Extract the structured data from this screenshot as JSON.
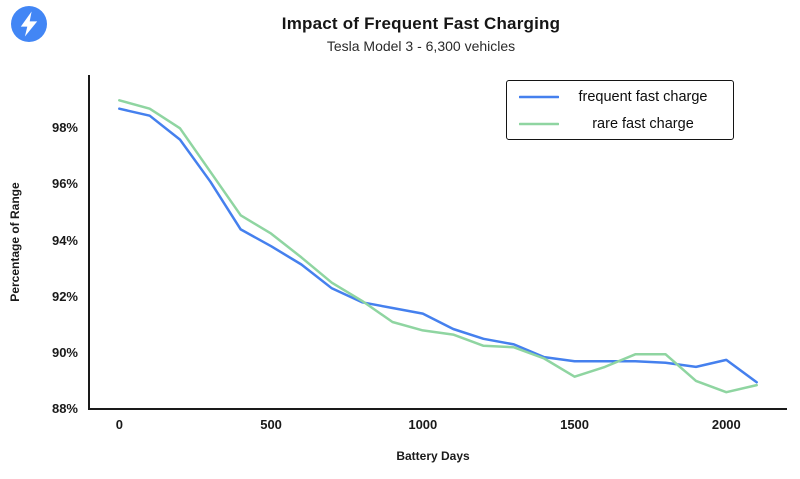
{
  "logo": {
    "icon": "lightning-bolt-icon",
    "bg_color": "#4286f5",
    "bolt_color": "#ffffff"
  },
  "chart_data": {
    "type": "line",
    "title": "Impact of Frequent Fast Charging",
    "subtitle": "Tesla Model 3 - 6,300 vehicles",
    "xlabel": "Battery Days",
    "ylabel": "Percentage of Range",
    "xlim": [
      -100,
      2200
    ],
    "ylim": [
      88,
      99.9
    ],
    "grid": false,
    "legend_position": "top-right",
    "x_ticks": [
      0,
      500,
      1000,
      1500,
      2000
    ],
    "x_tick_labels": [
      "0",
      "500",
      "1000",
      "1500",
      "2000"
    ],
    "y_ticks": [
      98,
      96,
      94,
      92,
      90,
      88
    ],
    "y_tick_labels": [
      "98%",
      "96%",
      "94%",
      "92%",
      "90%",
      "88%"
    ],
    "x": [
      0,
      100,
      200,
      300,
      400,
      500,
      600,
      700,
      800,
      900,
      1000,
      1100,
      1200,
      1300,
      1400,
      1500,
      1600,
      1700,
      1800,
      1900,
      2000,
      2100
    ],
    "series": [
      {
        "name": "frequent fast charge",
        "color": "#4580ee",
        "values": [
          98.7,
          98.45,
          97.6,
          96.1,
          94.4,
          93.8,
          93.15,
          92.3,
          91.8,
          91.6,
          91.4,
          90.85,
          90.5,
          90.3,
          89.85,
          89.7,
          89.7,
          89.7,
          89.65,
          89.5,
          89.75,
          88.95
        ]
      },
      {
        "name": "rare fast charge",
        "color": "#8fd5a1",
        "values": [
          99.0,
          98.7,
          98.0,
          96.45,
          94.9,
          94.25,
          93.4,
          92.5,
          91.85,
          91.1,
          90.8,
          90.65,
          90.25,
          90.2,
          89.8,
          89.15,
          89.5,
          89.95,
          89.95,
          89.0,
          88.6,
          88.85
        ]
      }
    ]
  }
}
